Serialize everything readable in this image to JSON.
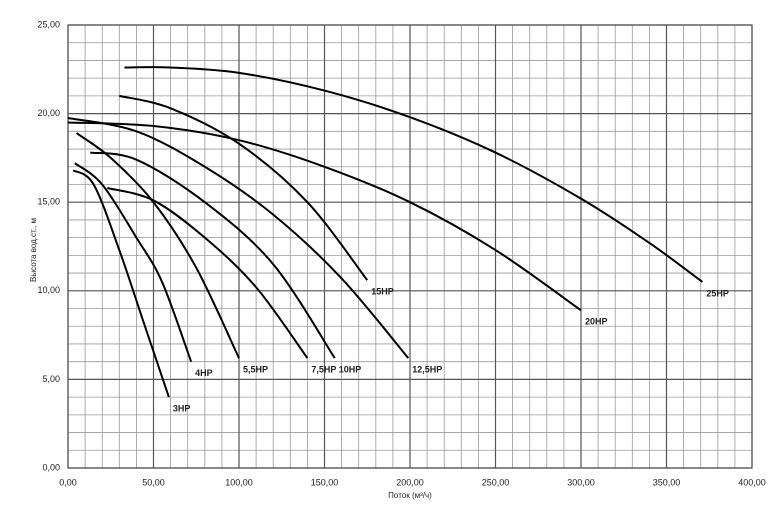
{
  "chart_data": {
    "type": "line",
    "x_label": "Поток (м³/ч)",
    "y_label": "Высота вод.ст., м",
    "xlim": [
      0,
      400
    ],
    "ylim": [
      0,
      25
    ],
    "xticks": [
      {
        "value": 0,
        "label": "0,00"
      },
      {
        "value": 50,
        "label": "50,00"
      },
      {
        "value": 100,
        "label": "100,00"
      },
      {
        "value": 150,
        "label": "150,00"
      },
      {
        "value": 200,
        "label": "200,00"
      },
      {
        "value": 250,
        "label": "250,00"
      },
      {
        "value": 300,
        "label": "300,00"
      },
      {
        "value": 350,
        "label": "350,00"
      },
      {
        "value": 400,
        "label": "400,00"
      }
    ],
    "yticks": [
      {
        "value": 0,
        "label": "0,00"
      },
      {
        "value": 5,
        "label": "5,00"
      },
      {
        "value": 10,
        "label": "10,00"
      },
      {
        "value": 15,
        "label": "15,00"
      },
      {
        "value": 20,
        "label": "20,00"
      },
      {
        "value": 25,
        "label": "25,00"
      }
    ],
    "grid": true,
    "series": [
      {
        "name": "3HP",
        "color": "#000000",
        "x": [
          3,
          15,
          30,
          45,
          59
        ],
        "values": [
          16.8,
          16,
          12.3,
          8,
          4
        ]
      },
      {
        "name": "4HP",
        "color": "#000000",
        "x": [
          4,
          20,
          40,
          55,
          72
        ],
        "values": [
          17.2,
          16,
          13,
          10.5,
          6
        ]
      },
      {
        "name": "5,5HP",
        "color": "#000000",
        "x": [
          5,
          25,
          50,
          75,
          100
        ],
        "values": [
          18.9,
          17.5,
          15,
          11.3,
          6.2
        ]
      },
      {
        "name": "7,5HP",
        "color": "#000000",
        "x": [
          23,
          50,
          80,
          110,
          140
        ],
        "values": [
          15.8,
          15.1,
          13,
          10.2,
          6.2
        ]
      },
      {
        "name": "10HP",
        "color": "#000000",
        "x": [
          13,
          40,
          80,
          120,
          156
        ],
        "values": [
          17.8,
          17.4,
          15,
          11.5,
          6.2
        ]
      },
      {
        "name": "12,5HP",
        "color": "#000000",
        "x": [
          0,
          40,
          80,
          120,
          160,
          199
        ],
        "values": [
          19.75,
          19,
          17,
          14.3,
          10.7,
          6.2
        ]
      },
      {
        "name": "15HP",
        "color": "#000000",
        "x": [
          30,
          60,
          100,
          140,
          175
        ],
        "values": [
          21,
          20.3,
          18.3,
          15,
          10.6
        ]
      },
      {
        "name": "20HP",
        "color": "#000000",
        "x": [
          0,
          50,
          100,
          150,
          200,
          250,
          300
        ],
        "values": [
          19.5,
          19.3,
          18.5,
          17,
          15,
          12.3,
          8.9
        ]
      },
      {
        "name": "25HP",
        "color": "#000000",
        "x": [
          33,
          60,
          100,
          150,
          200,
          250,
          300,
          340,
          371
        ],
        "values": [
          22.6,
          22.6,
          22.3,
          21.3,
          19.8,
          17.8,
          15.2,
          12.7,
          10.5
        ]
      }
    ]
  }
}
